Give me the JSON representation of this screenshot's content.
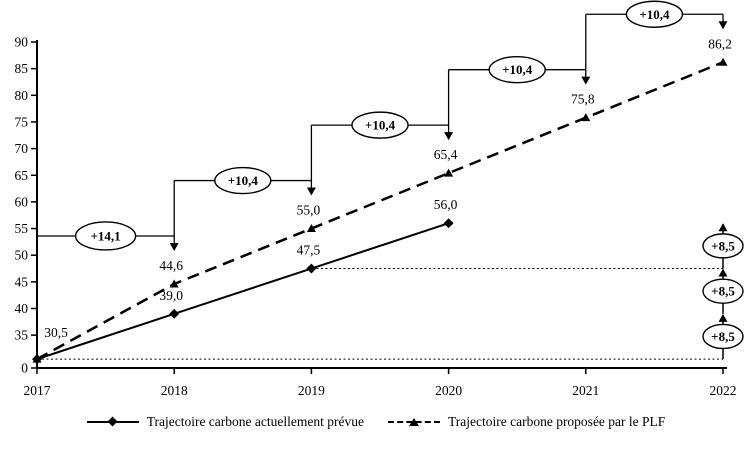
{
  "figure": {
    "background": "#ffffff",
    "line_color": "#000000"
  },
  "chart_data": {
    "type": "line",
    "title": "",
    "x_labels": [
      "2017",
      "2018",
      "2019",
      "2020",
      "2021",
      "2022"
    ],
    "x_values": [
      2017,
      2018,
      2019,
      2020,
      2021,
      2022
    ],
    "y_axis": {
      "tick_values": [
        90,
        85,
        80,
        75,
        70,
        65,
        60,
        55,
        50,
        45,
        40,
        35
      ],
      "origin_label": "0",
      "top": 90,
      "grid": false
    },
    "series": [
      {
        "name": "Trajectoire carbone actuellement prévue",
        "line_style": "solid",
        "marker": "diamond",
        "x": [
          2017,
          2018,
          2019,
          2020
        ],
        "values": [
          30.5,
          39.0,
          47.5,
          56.0
        ],
        "point_labels": [
          "30,5",
          "39,0",
          "47,5",
          "56,0"
        ]
      },
      {
        "name": "Trajectoire carbone proposée par le PLF",
        "line_style": "dashed",
        "marker": "triangle",
        "x": [
          2017,
          2018,
          2019,
          2020,
          2021,
          2022
        ],
        "values": [
          30.5,
          44.6,
          55.0,
          65.4,
          75.8,
          86.2
        ],
        "point_labels": [
          "",
          "44,6",
          "55,0",
          "65,4",
          "75,8",
          "86,2"
        ]
      }
    ],
    "dashed_series_increments": [
      {
        "from_x": 2017,
        "to_x": 2018,
        "label": "+14,1"
      },
      {
        "from_x": 2018,
        "to_x": 2019,
        "label": "+10,4"
      },
      {
        "from_x": 2019,
        "to_x": 2020,
        "label": "+10,4"
      },
      {
        "from_x": 2020,
        "to_x": 2021,
        "label": "+10,4"
      },
      {
        "from_x": 2021,
        "to_x": 2022,
        "label": "+10,4"
      }
    ],
    "solid_series_increments": {
      "at_x": 2022,
      "levels": [
        30.5,
        39.0,
        47.5,
        56.0
      ],
      "labels": [
        "+8,5",
        "+8,5",
        "+8,5"
      ]
    },
    "reference_lines": [
      {
        "value": 30.5,
        "from_x": 2017,
        "to_x": 2022,
        "style": "dotted"
      },
      {
        "value": 47.5,
        "from_x": 2019,
        "to_x": 2022,
        "style": "dotted"
      }
    ],
    "legend_position": "bottom"
  },
  "legend": {
    "items": [
      {
        "label": "Trajectoire carbone actuellement prévue",
        "marker": "solid-line-diamond"
      },
      {
        "label": "Trajectoire carbone proposée par le PLF",
        "marker": "dashed-line-triangle"
      }
    ]
  }
}
